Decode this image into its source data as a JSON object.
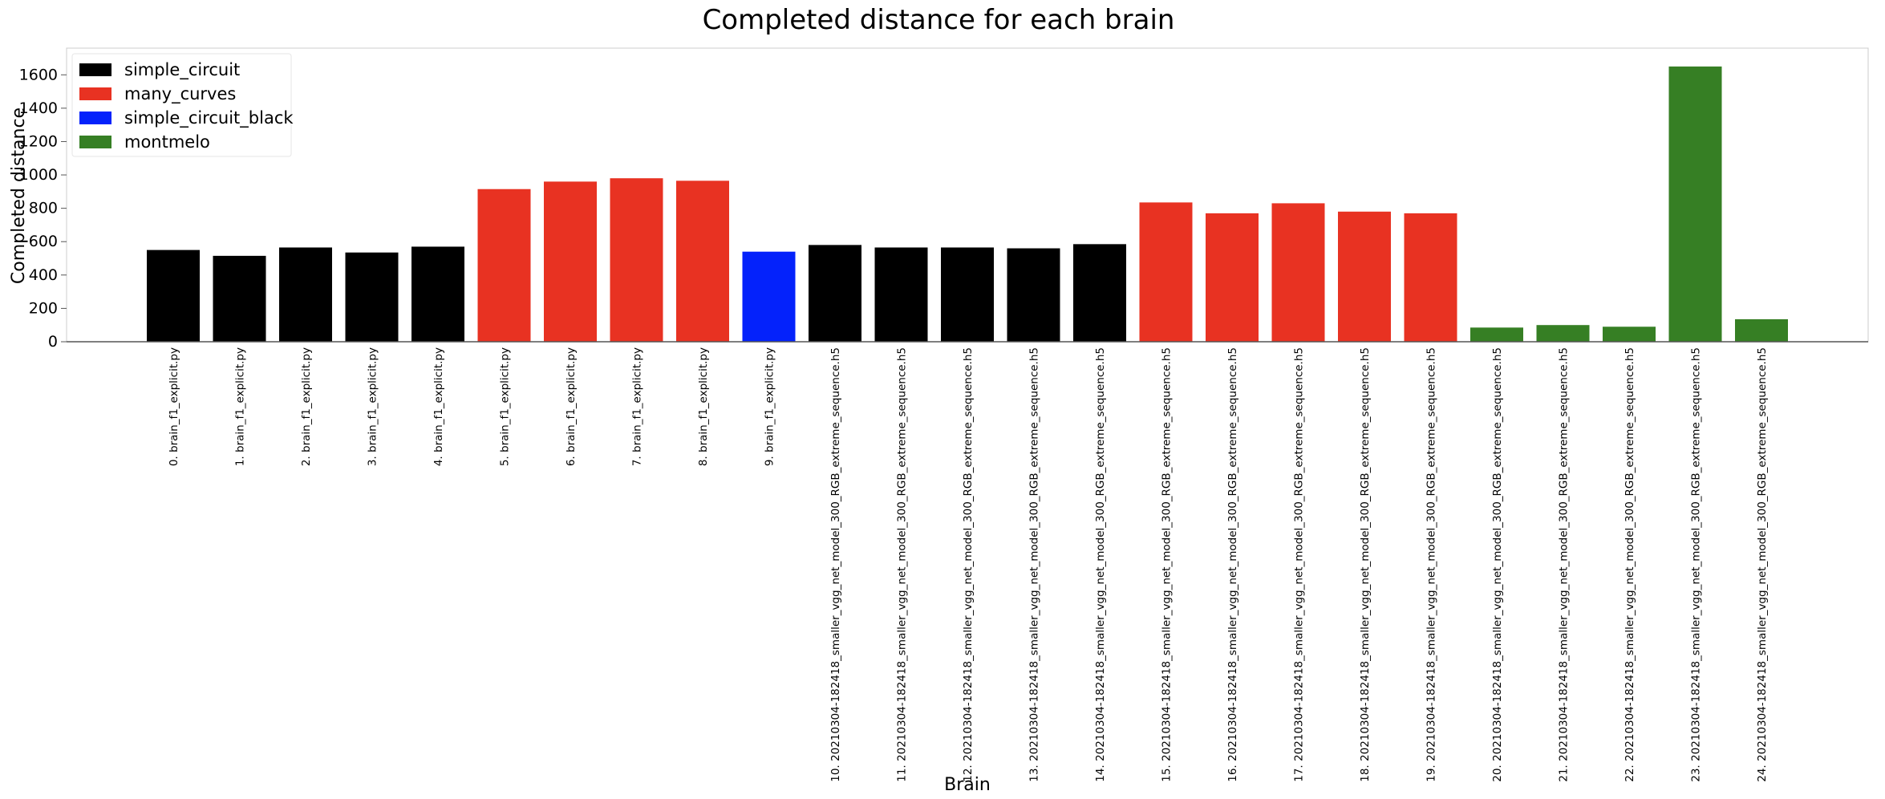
{
  "chart_data": {
    "type": "bar",
    "title": "Completed distance for each brain",
    "xlabel": "Brain",
    "ylabel": "Completed distance",
    "ylim": [
      0,
      1760
    ],
    "yticks": [
      0,
      200,
      400,
      600,
      800,
      1000,
      1200,
      1400,
      1600
    ],
    "grid": false,
    "legend_position": "top-left",
    "legend": [
      {
        "name": "simple_circuit",
        "color": "#000000"
      },
      {
        "name": "many_curves",
        "color": "#e83222"
      },
      {
        "name": "simple_circuit_black",
        "color": "#0422fb"
      },
      {
        "name": "montmelo",
        "color": "#367f24"
      }
    ],
    "categories": [
      "0. brain_f1_explicit.py",
      "1. brain_f1_explicit.py",
      "2. brain_f1_explicit.py",
      "3. brain_f1_explicit.py",
      "4. brain_f1_explicit.py",
      "5. brain_f1_explicit.py",
      "6. brain_f1_explicit.py",
      "7. brain_f1_explicit.py",
      "8. brain_f1_explicit.py",
      "9. brain_f1_explicit.py",
      "10. 20210304-182418_smaller_vgg_net_model_300_RGB_extreme_sequence.h5",
      "11. 20210304-182418_smaller_vgg_net_model_300_RGB_extreme_sequence.h5",
      "12. 20210304-182418_smaller_vgg_net_model_300_RGB_extreme_sequence.h5",
      "13. 20210304-182418_smaller_vgg_net_model_300_RGB_extreme_sequence.h5",
      "14. 20210304-182418_smaller_vgg_net_model_300_RGB_extreme_sequence.h5",
      "15. 20210304-182418_smaller_vgg_net_model_300_RGB_extreme_sequence.h5",
      "16. 20210304-182418_smaller_vgg_net_model_300_RGB_extreme_sequence.h5",
      "17. 20210304-182418_smaller_vgg_net_model_300_RGB_extreme_sequence.h5",
      "18. 20210304-182418_smaller_vgg_net_model_300_RGB_extreme_sequence.h5",
      "19. 20210304-182418_smaller_vgg_net_model_300_RGB_extreme_sequence.h5",
      "20. 20210304-182418_smaller_vgg_net_model_300_RGB_extreme_sequence.h5",
      "21. 20210304-182418_smaller_vgg_net_model_300_RGB_extreme_sequence.h5",
      "22. 20210304-182418_smaller_vgg_net_model_300_RGB_extreme_sequence.h5",
      "23. 20210304-182418_smaller_vgg_net_model_300_RGB_extreme_sequence.h5",
      "24. 20210304-182418_smaller_vgg_net_model_300_RGB_extreme_sequence.h5"
    ],
    "values": [
      550,
      515,
      565,
      535,
      570,
      915,
      960,
      980,
      965,
      540,
      580,
      565,
      565,
      560,
      585,
      835,
      770,
      830,
      780,
      770,
      85,
      100,
      90,
      1650,
      135
    ],
    "series_group": [
      "simple_circuit",
      "simple_circuit",
      "simple_circuit",
      "simple_circuit",
      "simple_circuit",
      "many_curves",
      "many_curves",
      "many_curves",
      "many_curves",
      "simple_circuit_black",
      "simple_circuit",
      "simple_circuit",
      "simple_circuit",
      "simple_circuit",
      "simple_circuit",
      "many_curves",
      "many_curves",
      "many_curves",
      "many_curves",
      "many_curves",
      "montmelo",
      "montmelo",
      "montmelo",
      "montmelo",
      "montmelo"
    ]
  }
}
